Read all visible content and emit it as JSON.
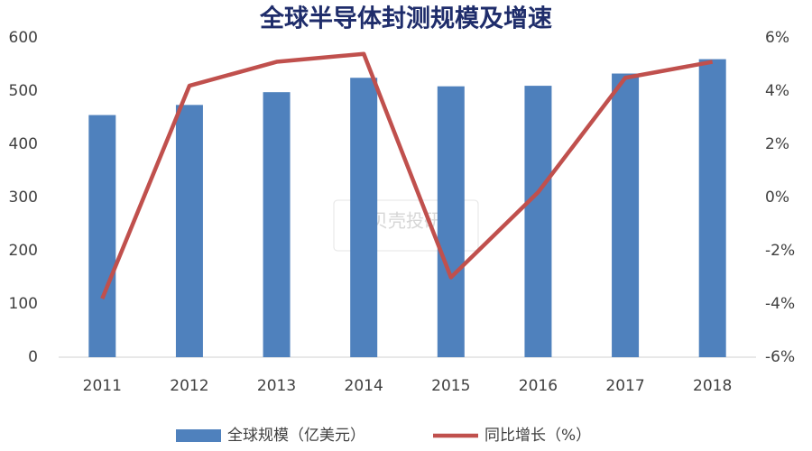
{
  "chart_data": {
    "type": "bar_line",
    "title": "全球半导体封测规模及增速",
    "watermark": "贝壳投研",
    "categories": [
      "2011",
      "2012",
      "2013",
      "2014",
      "2015",
      "2016",
      "2017",
      "2018"
    ],
    "series": [
      {
        "name": "全球规模（亿美元）",
        "type": "bar",
        "color": "#4f81bd",
        "values": [
          455,
          474,
          498,
          525,
          509,
          510,
          533,
          560
        ]
      },
      {
        "name": "同比增长（%）",
        "type": "line",
        "axis": "y2",
        "color": "#c0504d",
        "values": [
          -3.8,
          4.2,
          5.1,
          5.4,
          -3.0,
          0.2,
          4.5,
          5.1
        ]
      }
    ],
    "ylim": [
      0,
      600
    ],
    "yticks": [
      0,
      100,
      200,
      300,
      400,
      500,
      600
    ],
    "y2lim": [
      -6,
      6
    ],
    "y2ticks": [
      {
        "value": -6,
        "label": "-6%"
      },
      {
        "value": -4,
        "label": "-4%"
      },
      {
        "value": -2,
        "label": "-2%"
      },
      {
        "value": 0,
        "label": "0%"
      },
      {
        "value": 2,
        "label": "2%"
      },
      {
        "value": 4,
        "label": "4%"
      },
      {
        "value": 6,
        "label": "6%"
      }
    ],
    "grid": false,
    "legend": "bottom"
  }
}
